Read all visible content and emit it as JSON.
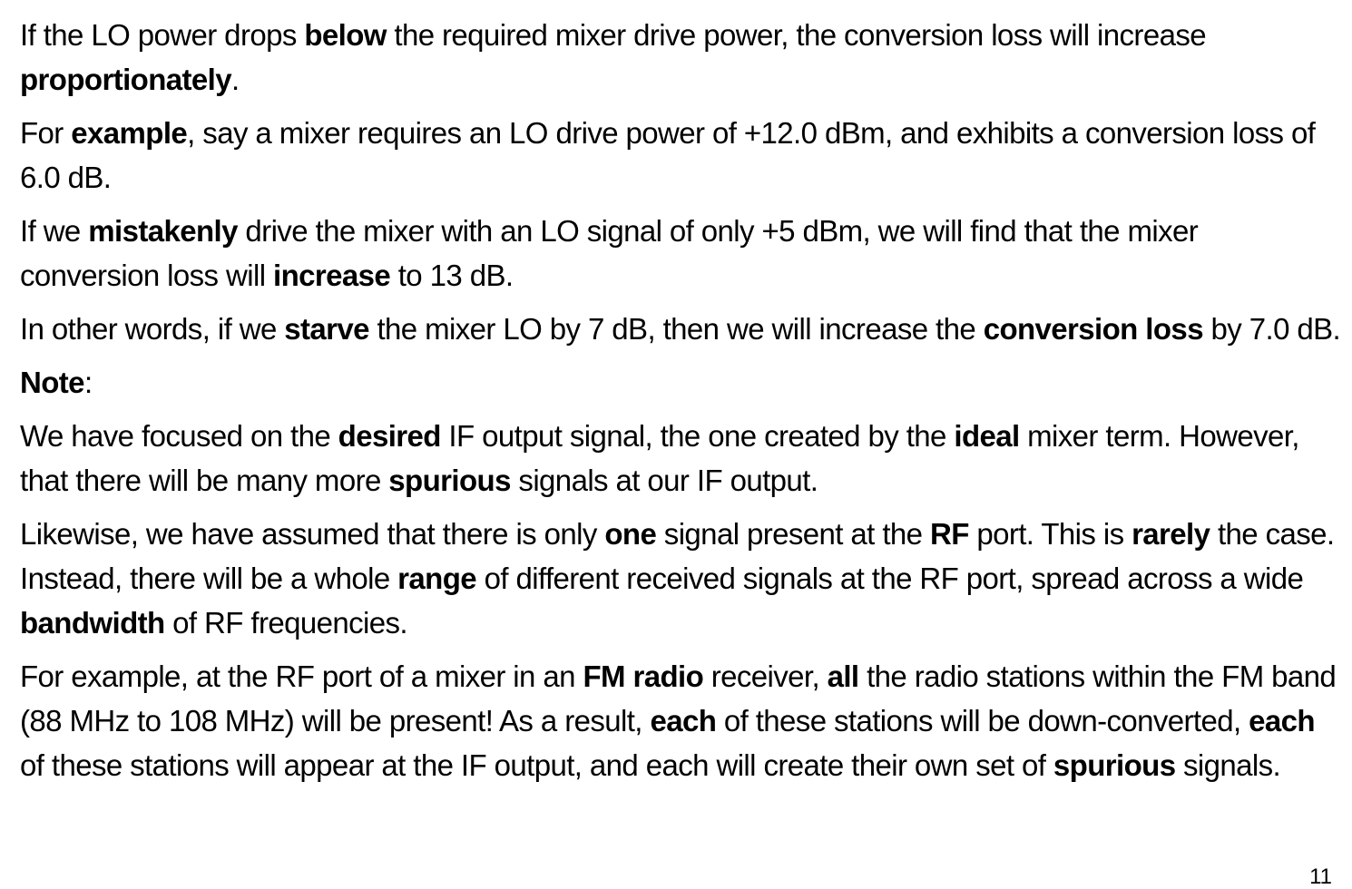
{
  "paragraphs": [
    [
      {
        "t": "If the LO power drops ",
        "b": false
      },
      {
        "t": "below",
        "b": true
      },
      {
        "t": " the required mixer drive power, the conversion loss will increase ",
        "b": false
      },
      {
        "t": "proportionately",
        "b": true
      },
      {
        "t": ".",
        "b": false
      }
    ],
    [
      {
        "t": "For ",
        "b": false
      },
      {
        "t": "example",
        "b": true
      },
      {
        "t": ", say a mixer requires an LO drive power of +12.0 dBm, and exhibits a conversion loss of 6.0 dB.",
        "b": false
      }
    ],
    [
      {
        "t": "If we ",
        "b": false
      },
      {
        "t": "mistakenly",
        "b": true
      },
      {
        "t": " drive the mixer with an LO signal of only +5 dBm, we will find that the mixer conversion loss will ",
        "b": false
      },
      {
        "t": "increase",
        "b": true
      },
      {
        "t": " to 13 dB.",
        "b": false
      }
    ],
    [
      {
        "t": "In other words, if we ",
        "b": false
      },
      {
        "t": "starve",
        "b": true
      },
      {
        "t": " the mixer LO by 7 dB, then we will increase the ",
        "b": false
      },
      {
        "t": "conversion loss",
        "b": true
      },
      {
        "t": " by 7.0 dB.",
        "b": false
      }
    ],
    [
      {
        "t": "Note",
        "b": true
      },
      {
        "t": ":",
        "b": false
      }
    ],
    [
      {
        "t": "We have focused on the ",
        "b": false
      },
      {
        "t": "desired",
        "b": true
      },
      {
        "t": " IF output signal, the one created by the ",
        "b": false
      },
      {
        "t": "ideal",
        "b": true
      },
      {
        "t": " mixer term. However,  that there will be many more ",
        "b": false
      },
      {
        "t": "spurious",
        "b": true
      },
      {
        "t": " signals at our IF output.",
        "b": false
      }
    ],
    [
      {
        "t": "Likewise, we have assumed that there is only ",
        "b": false
      },
      {
        "t": "one",
        "b": true
      },
      {
        "t": " signal present at the ",
        "b": false
      },
      {
        "t": "RF",
        "b": true
      },
      {
        "t": " port. This is ",
        "b": false
      },
      {
        "t": "rarely",
        "b": true
      },
      {
        "t": " the case. Instead, there will be a whole ",
        "b": false
      },
      {
        "t": "range",
        "b": true
      },
      {
        "t": " of different received signals at the RF port, spread across a wide ",
        "b": false
      },
      {
        "t": "bandwidth",
        "b": true
      },
      {
        "t": " of RF frequencies.",
        "b": false
      }
    ],
    [
      {
        "t": "For example, at the RF port of a mixer in an ",
        "b": false
      },
      {
        "t": "FM radio",
        "b": true
      },
      {
        "t": " receiver, ",
        "b": false
      },
      {
        "t": "all",
        "b": true
      },
      {
        "t": " the radio stations within the FM band (88 MHz to 108 MHz) will be present! As a result, ",
        "b": false
      },
      {
        "t": "each",
        "b": true
      },
      {
        "t": " of these stations will be down-converted, ",
        "b": false
      },
      {
        "t": "each",
        "b": true
      },
      {
        "t": " of these stations will appear at the IF output, and each will create their own set of ",
        "b": false
      },
      {
        "t": "spurious",
        "b": true
      },
      {
        "t": " signals.",
        "b": false
      }
    ]
  ],
  "page_number": "11"
}
